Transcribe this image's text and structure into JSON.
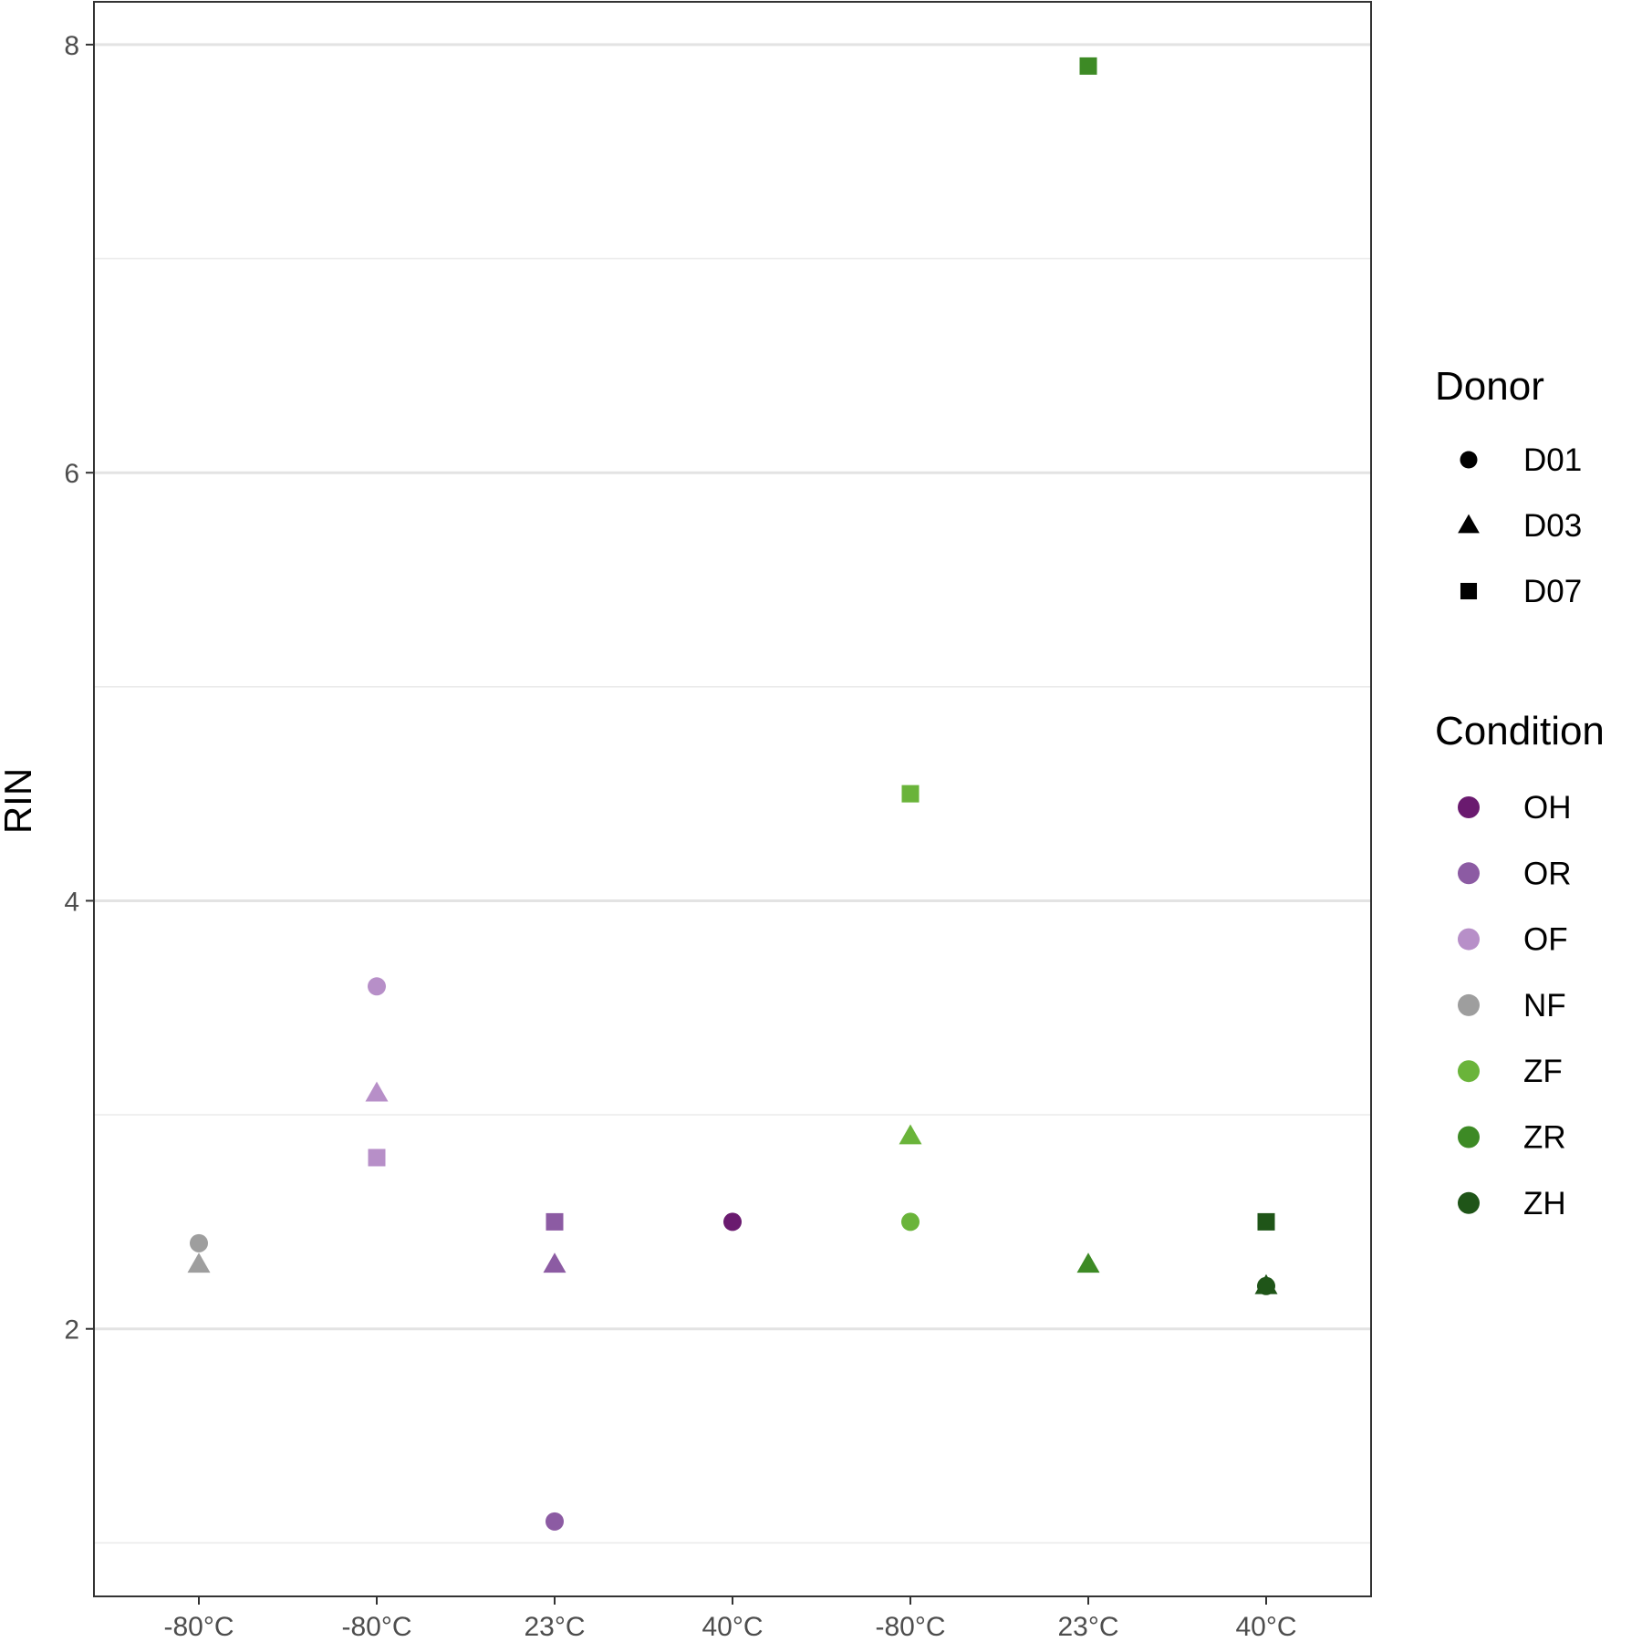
{
  "chart_data": {
    "type": "scatter",
    "title": "",
    "xlabel": "",
    "ylabel": "RIN",
    "ylim": [
      0.75,
      8.2
    ],
    "yticks": [
      2,
      4,
      6,
      8
    ],
    "grid": true,
    "legend_placement": "right",
    "categories": [
      "-80°C",
      "-80°C",
      "23°C",
      "40°C",
      "-80°C",
      "23°C",
      "40°C"
    ],
    "donor_legend": {
      "title": "Donor",
      "items": [
        {
          "label": "D01",
          "shape": "circle"
        },
        {
          "label": "D03",
          "shape": "triangle"
        },
        {
          "label": "D07",
          "shape": "square"
        }
      ]
    },
    "condition_legend": {
      "title": "Condition",
      "items": [
        {
          "label": "OH",
          "color": "#6a1a6f"
        },
        {
          "label": "OR",
          "color": "#8c5ba3"
        },
        {
          "label": "OF",
          "color": "#b78fc8"
        },
        {
          "label": "NF",
          "color": "#9e9e9e"
        },
        {
          "label": "ZF",
          "color": "#6ab43a"
        },
        {
          "label": "ZR",
          "color": "#3d8a25"
        },
        {
          "label": "ZH",
          "color": "#1f5518"
        }
      ]
    },
    "points": [
      {
        "x": 1,
        "y": 2.4,
        "donor": "D01",
        "condition": "NF"
      },
      {
        "x": 1,
        "y": 2.3,
        "donor": "D03",
        "condition": "NF"
      },
      {
        "x": 2,
        "y": 3.6,
        "donor": "D01",
        "condition": "OF"
      },
      {
        "x": 2,
        "y": 3.1,
        "donor": "D03",
        "condition": "OF"
      },
      {
        "x": 2,
        "y": 2.8,
        "donor": "D07",
        "condition": "OF"
      },
      {
        "x": 3,
        "y": 1.1,
        "donor": "D01",
        "condition": "OR"
      },
      {
        "x": 3,
        "y": 2.3,
        "donor": "D03",
        "condition": "OR"
      },
      {
        "x": 3,
        "y": 2.5,
        "donor": "D07",
        "condition": "OR"
      },
      {
        "x": 4,
        "y": 2.5,
        "donor": "D01",
        "condition": "OH"
      },
      {
        "x": 5,
        "y": 2.5,
        "donor": "D01",
        "condition": "ZF"
      },
      {
        "x": 5,
        "y": 2.9,
        "donor": "D03",
        "condition": "ZF"
      },
      {
        "x": 5,
        "y": 4.5,
        "donor": "D07",
        "condition": "ZF"
      },
      {
        "x": 6,
        "y": 2.3,
        "donor": "D03",
        "condition": "ZR"
      },
      {
        "x": 6,
        "y": 7.9,
        "donor": "D07",
        "condition": "ZR"
      },
      {
        "x": 7,
        "y": 2.2,
        "donor": "D01",
        "condition": "ZH"
      },
      {
        "x": 7,
        "y": 2.2,
        "donor": "D03",
        "condition": "ZH"
      },
      {
        "x": 7,
        "y": 2.5,
        "donor": "D07",
        "condition": "ZH"
      }
    ]
  }
}
